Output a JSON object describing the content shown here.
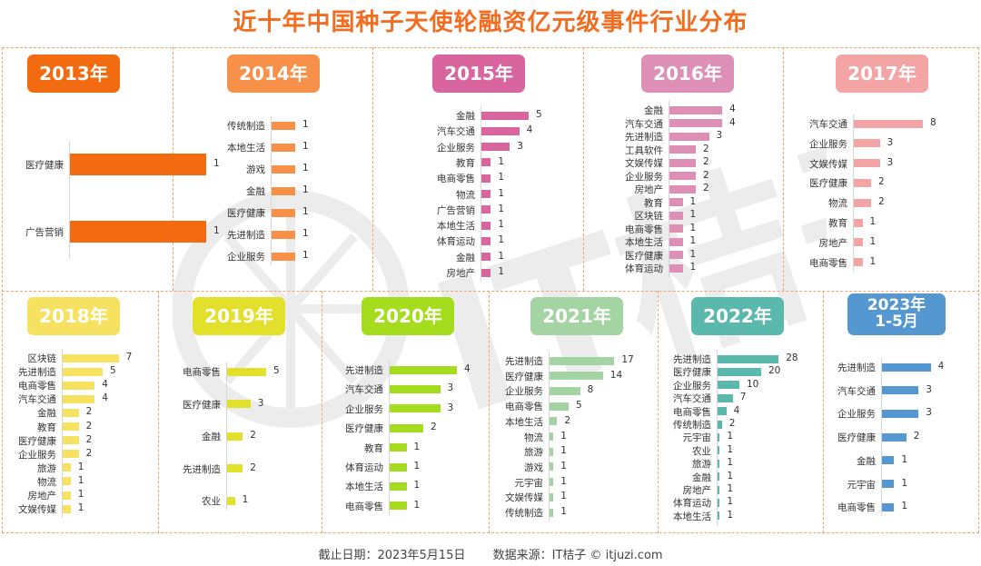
{
  "title": "近十年中国种子天使轮融资亿元级事件行业分布",
  "footer": {
    "date": "截止日期：2023年5月15日",
    "source": "数据来源：IT桔子 © itjuzi.com"
  },
  "watermark_text": "IT桔子 ITJUZI.COM",
  "chart_data": [
    {
      "type": "bar",
      "orientation": "horizontal",
      "title": "2013年",
      "color": "#f26b10",
      "categories": [
        "医疗健康",
        "广告营销"
      ],
      "values": [
        1,
        1
      ]
    },
    {
      "type": "bar",
      "orientation": "horizontal",
      "title": "2014年",
      "color": "#f7914a",
      "categories": [
        "传统制造",
        "本地生活",
        "游戏",
        "金融",
        "医疗健康",
        "先进制造",
        "企业服务"
      ],
      "values": [
        1,
        1,
        1,
        1,
        1,
        1,
        1
      ]
    },
    {
      "type": "bar",
      "orientation": "horizontal",
      "title": "2015年",
      "color": "#d9659f",
      "categories": [
        "金融",
        "汽车交通",
        "企业服务",
        "教育",
        "电商零售",
        "物流",
        "广告营销",
        "本地生活",
        "体育运动",
        "金融",
        "房地产"
      ],
      "values": [
        5,
        4,
        3,
        1,
        1,
        1,
        1,
        1,
        1,
        1,
        1
      ]
    },
    {
      "type": "bar",
      "orientation": "horizontal",
      "title": "2016年",
      "color": "#de8fb5",
      "categories": [
        "金融",
        "汽车交通",
        "先进制造",
        "工具软件",
        "文娱传媒",
        "企业服务",
        "房地产",
        "教育",
        "区块链",
        "电商零售",
        "本地生活",
        "医疗健康",
        "体育运动"
      ],
      "values": [
        4,
        4,
        3,
        2,
        2,
        2,
        2,
        1,
        1,
        1,
        1,
        1,
        1
      ]
    },
    {
      "type": "bar",
      "orientation": "horizontal",
      "title": "2017年",
      "color": "#f3a5a5",
      "categories": [
        "汽车交通",
        "企业服务",
        "文娱传媒",
        "医疗健康",
        "物流",
        "教育",
        "房地产",
        "电商零售"
      ],
      "values": [
        8,
        3,
        3,
        2,
        2,
        1,
        1,
        1
      ]
    },
    {
      "type": "bar",
      "orientation": "horizontal",
      "title": "2018年",
      "color": "#f7e160",
      "categories": [
        "区块链",
        "先进制造",
        "电商零售",
        "汽车交通",
        "金融",
        "教育",
        "医疗健康",
        "企业服务",
        "旅游",
        "物流",
        "房地产",
        "文娱传媒"
      ],
      "values": [
        7,
        5,
        4,
        4,
        2,
        2,
        2,
        2,
        1,
        1,
        1,
        1
      ]
    },
    {
      "type": "bar",
      "orientation": "horizontal",
      "title": "2019年",
      "color": "#e3e02b",
      "categories": [
        "电商零售",
        "医疗健康",
        "金融",
        "先进制造",
        "农业"
      ],
      "values": [
        5,
        3,
        2,
        2,
        1
      ]
    },
    {
      "type": "bar",
      "orientation": "horizontal",
      "title": "2020年",
      "color": "#a6dc1e",
      "categories": [
        "先进制造",
        "汽车交通",
        "企业服务",
        "医疗健康",
        "教育",
        "体育运动",
        "本地生活",
        "电商零售"
      ],
      "values": [
        4,
        3,
        3,
        2,
        1,
        1,
        1,
        1
      ]
    },
    {
      "type": "bar",
      "orientation": "horizontal",
      "title": "2021年",
      "color": "#a4d4a3",
      "categories": [
        "先进制造",
        "医疗健康",
        "企业服务",
        "电商零售",
        "本地生活",
        "物流",
        "旅游",
        "游戏",
        "元宇宙",
        "文娱传媒",
        "传统制造"
      ],
      "values": [
        17,
        14,
        8,
        5,
        2,
        1,
        1,
        1,
        1,
        1,
        1
      ]
    },
    {
      "type": "bar",
      "orientation": "horizontal",
      "title": "2022年",
      "color": "#5ab8ad",
      "categories": [
        "先进制造",
        "医疗健康",
        "企业服务",
        "汽车交通",
        "电商零售",
        "传统制造",
        "元宇宙",
        "农业",
        "旅游",
        "金融",
        "房地产",
        "体育运动",
        "本地生活"
      ],
      "values": [
        28,
        20,
        10,
        7,
        4,
        2,
        1,
        1,
        1,
        1,
        1,
        1,
        1
      ]
    },
    {
      "type": "bar",
      "orientation": "horizontal",
      "title": "2023年\n1-5月",
      "color": "#5497d1",
      "categories": [
        "先进制造",
        "汽车交通",
        "企业服务",
        "医疗健康",
        "金融",
        "元宇宙",
        "电商零售"
      ],
      "values": [
        4,
        3,
        3,
        2,
        1,
        1,
        1
      ]
    }
  ]
}
